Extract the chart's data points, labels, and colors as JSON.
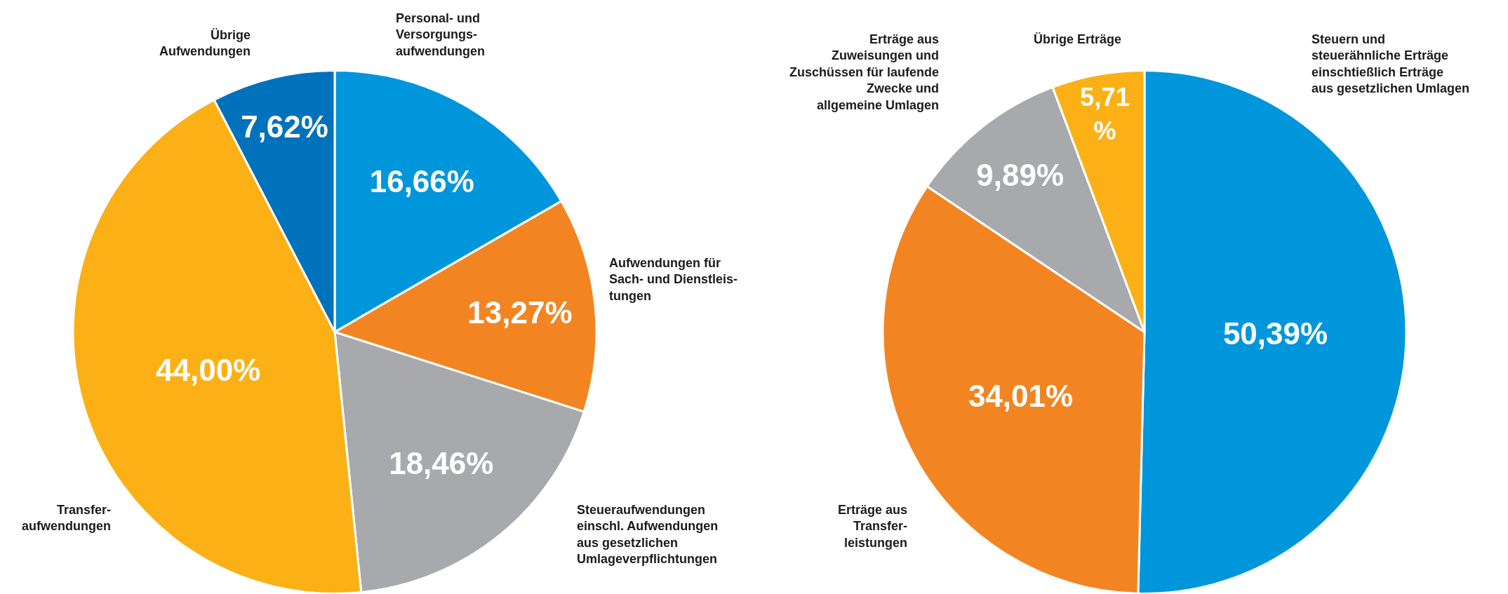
{
  "chart_data": [
    {
      "type": "pie",
      "categories": [
        "Personal- und\nVersorgungs-\naufwendungen",
        "Aufwendungen für\nSach- und Dienstleis-\ntungen",
        "Steueraufwendungen\neinschl. Aufwendungen\naus gesetzlichen\nUmlageverpflichtungen",
        "Transfer-\naufwendungen",
        "Übrige\nAufwendungen"
      ],
      "values": [
        16.66,
        13.27,
        18.46,
        44.0,
        7.62
      ],
      "colors": [
        "#0096db",
        "#f28522",
        "#a8a9ad",
        "#fbb116",
        "#0071bb"
      ],
      "value_labels": [
        "16,66%",
        "13,27%",
        "18,46%",
        "44,00%",
        "7,62%"
      ]
    },
    {
      "type": "pie",
      "categories": [
        "Steuern und\nsteuerähnliche Erträge\neinschtießlich Erträge\naus gesetzlichen Umlagen",
        "Erträge aus\nTransfer-\nleistungen",
        "Erträge aus\nZuweisungen und\nZuschüssen für laufende\nZwecke und\nallgemeine Umlagen",
        "Übrige Erträge"
      ],
      "values": [
        50.39,
        34.01,
        9.89,
        5.71
      ],
      "colors": [
        "#0096db",
        "#f28522",
        "#a8a9ad",
        "#fbb116"
      ],
      "value_labels": [
        "50,39%",
        "34,01%",
        "9,89%",
        "5,71\n%"
      ]
    }
  ]
}
